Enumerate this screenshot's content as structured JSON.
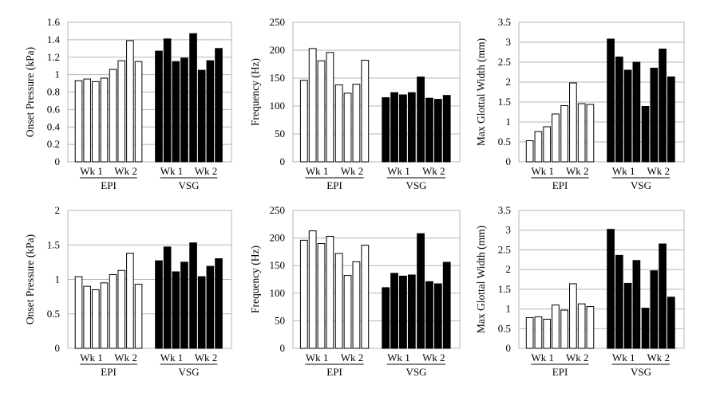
{
  "chart_data": [
    {
      "type": "bar",
      "ylabel": "Onset Pressure (kPa)",
      "ylim": [
        0,
        1.6
      ],
      "yticks": [
        "0",
        "0.2",
        "0.4",
        "0.6",
        "0.8",
        "1",
        "1.2",
        "1.4",
        "1.6"
      ],
      "week_labels": [
        "Wk 1",
        "Wk 2",
        "Wk 1",
        "Wk 2"
      ],
      "group_labels": [
        "EPI",
        "VSG"
      ],
      "grid": true,
      "groups": [
        {
          "name": "EPI",
          "fill": "#ffffff",
          "bars": [
            [
              0.93,
              0.95,
              0.92,
              0.96
            ],
            [
              1.06,
              1.16,
              1.39,
              1.15
            ]
          ]
        },
        {
          "name": "VSG",
          "fill": "#000000",
          "bars": [
            [
              1.27,
              1.41,
              1.15,
              1.19
            ],
            [
              1.47,
              1.05,
              1.16,
              1.3
            ]
          ]
        }
      ]
    },
    {
      "type": "bar",
      "ylabel": "Frequency (Hz)",
      "ylim": [
        0,
        250
      ],
      "yticks": [
        "0",
        "50",
        "100",
        "150",
        "200",
        "250"
      ],
      "week_labels": [
        "Wk 1",
        "Wk 2",
        "Wk 1",
        "Wk 2"
      ],
      "group_labels": [
        "EPI",
        "VSG"
      ],
      "grid": true,
      "groups": [
        {
          "name": "EPI",
          "fill": "#ffffff",
          "bars": [
            [
              146,
              203,
              181,
              196
            ],
            [
              138,
              123,
              139,
              182
            ]
          ]
        },
        {
          "name": "VSG",
          "fill": "#000000",
          "bars": [
            [
              115,
              124,
              120,
              124
            ],
            [
              152,
              114,
              112,
              119
            ]
          ]
        }
      ]
    },
    {
      "type": "bar",
      "ylabel": "Max Glottal Width (mm)",
      "ylim": [
        0,
        3.5
      ],
      "yticks": [
        "0",
        "0.5",
        "1",
        "1.5",
        "2",
        "2.5",
        "3",
        "3.5"
      ],
      "week_labels": [
        "Wk 1",
        "Wk 2",
        "Wk 1",
        "Wk 2"
      ],
      "group_labels": [
        "EPI",
        "VSG"
      ],
      "grid": true,
      "groups": [
        {
          "name": "EPI",
          "fill": "#ffffff",
          "bars": [
            [
              0.53,
              0.76,
              0.88,
              1.2
            ],
            [
              1.41,
              1.98,
              1.46,
              1.44
            ]
          ]
        },
        {
          "name": "VSG",
          "fill": "#000000",
          "bars": [
            [
              3.08,
              2.63,
              2.3,
              2.5
            ],
            [
              1.39,
              2.35,
              2.83,
              2.13
            ]
          ]
        }
      ]
    },
    {
      "type": "bar",
      "ylabel": "Onset Pressure (kPa)",
      "ylim": [
        0,
        2
      ],
      "yticks": [
        "0",
        "0.5",
        "1",
        "1.5",
        "2"
      ],
      "week_labels": [
        "Wk 1",
        "Wk 2",
        "Wk 1",
        "Wk 2"
      ],
      "group_labels": [
        "EPI",
        "VSG"
      ],
      "grid": true,
      "groups": [
        {
          "name": "EPI",
          "fill": "#ffffff",
          "bars": [
            [
              1.04,
              0.9,
              0.85,
              0.95
            ],
            [
              1.07,
              1.13,
              1.38,
              0.93
            ]
          ]
        },
        {
          "name": "VSG",
          "fill": "#000000",
          "bars": [
            [
              1.27,
              1.47,
              1.11,
              1.25
            ],
            [
              1.53,
              1.04,
              1.19,
              1.3
            ]
          ]
        }
      ]
    },
    {
      "type": "bar",
      "ylabel": "Frequency (Hz)",
      "ylim": [
        0,
        250
      ],
      "yticks": [
        "0",
        "50",
        "100",
        "150",
        "200",
        "250"
      ],
      "week_labels": [
        "Wk 1",
        "Wk 2",
        "Wk 1",
        "Wk 2"
      ],
      "group_labels": [
        "EPI",
        "VSG"
      ],
      "grid": true,
      "groups": [
        {
          "name": "EPI",
          "fill": "#ffffff",
          "bars": [
            [
              196,
              213,
              190,
              203
            ],
            [
              172,
              132,
              157,
              187
            ]
          ]
        },
        {
          "name": "VSG",
          "fill": "#000000",
          "bars": [
            [
              110,
              136,
              131,
              133
            ],
            [
              208,
              121,
              117,
              156
            ]
          ]
        }
      ]
    },
    {
      "type": "bar",
      "ylabel": "Max Glottal Width (mm)",
      "ylim": [
        0,
        3.5
      ],
      "yticks": [
        "0",
        "0.5",
        "1",
        "1.5",
        "2",
        "2.5",
        "3",
        "3.5"
      ],
      "week_labels": [
        "Wk 1",
        "Wk 2",
        "Wk 1",
        "Wk 2"
      ],
      "group_labels": [
        "EPI",
        "VSG"
      ],
      "grid": true,
      "groups": [
        {
          "name": "EPI",
          "fill": "#ffffff",
          "bars": [
            [
              0.78,
              0.8,
              0.74,
              1.1
            ],
            [
              0.97,
              1.64,
              1.13,
              1.06
            ]
          ]
        },
        {
          "name": "VSG",
          "fill": "#000000",
          "bars": [
            [
              3.02,
              2.36,
              1.65,
              2.23
            ],
            [
              1.02,
              1.97,
              2.65,
              1.3
            ]
          ]
        }
      ]
    }
  ]
}
